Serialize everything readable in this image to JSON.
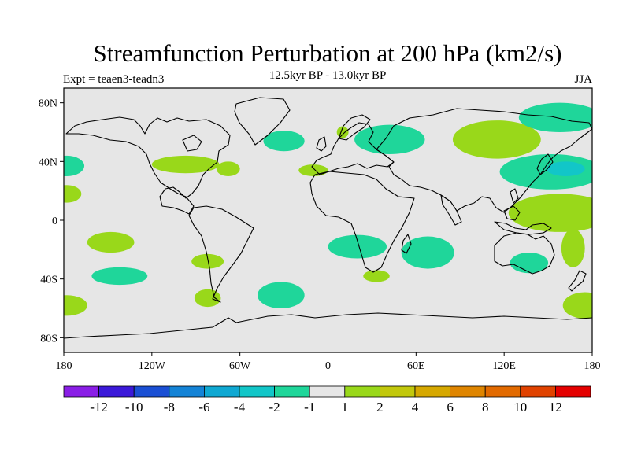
{
  "title": "Streamfunction Perturbation at 200 hPa (km2/s)",
  "subtitle": "12.5kyr BP - 13.0kyr BP",
  "left_label": "Expt = teaen3-teadn3",
  "right_label": "JJA",
  "map": {
    "projection": "cylindrical-equidistant",
    "lon_range": [
      -180,
      180
    ],
    "lat_range": [
      -90,
      90
    ],
    "background_color": "#e6e6e6",
    "lon_ticks": [
      {
        "value": -180,
        "label": "180"
      },
      {
        "value": -120,
        "label": "120W"
      },
      {
        "value": -60,
        "label": "60W"
      },
      {
        "value": 0,
        "label": "0"
      },
      {
        "value": 60,
        "label": "60E"
      },
      {
        "value": 120,
        "label": "120E"
      },
      {
        "value": 180,
        "label": "180"
      }
    ],
    "lat_ticks": [
      {
        "value": 80,
        "label": "80N"
      },
      {
        "value": 40,
        "label": "40N"
      },
      {
        "value": 0,
        "label": "0"
      },
      {
        "value": -40,
        "label": "40S"
      },
      {
        "value": -80,
        "label": "80S"
      }
    ]
  },
  "colorbar": {
    "colors": [
      "#8a1ee6",
      "#3b19d9",
      "#1a4fd4",
      "#1483d6",
      "#0fa8d2",
      "#12c6c8",
      "#1fd69a",
      "#e6e6e6",
      "#99d81a",
      "#c2c80c",
      "#d6a800",
      "#df8500",
      "#e26a00",
      "#e04200",
      "#e40000"
    ],
    "labels": [
      "-12",
      "-10",
      "-8",
      "-6",
      "-4",
      "-2",
      "-1",
      "1",
      "2",
      "4",
      "6",
      "8",
      "10",
      "12"
    ]
  },
  "chart_data": {
    "type": "filled-contour-map",
    "variable": "Streamfunction Perturbation at 200 hPa",
    "units": "km2/s",
    "season": "JJA",
    "period": "12.5kyr BP - 13.0kyr BP",
    "experiment": "teaen3-teadn3",
    "levels": [
      -12,
      -10,
      -8,
      -6,
      -4,
      -2,
      -1,
      1,
      2,
      4,
      6,
      8,
      10,
      12
    ],
    "anomaly_regions": [
      {
        "lon": -148,
        "lat": -15,
        "rx": 16,
        "ry": 7,
        "value": 1.5
      },
      {
        "lon": -142,
        "lat": -38,
        "rx": 19,
        "ry": 6,
        "value": -1.5
      },
      {
        "lon": -178,
        "lat": -58,
        "rx": 14,
        "ry": 7,
        "value": 1.5
      },
      {
        "lon": -178,
        "lat": 37,
        "rx": 12,
        "ry": 7,
        "value": -1.5
      },
      {
        "lon": -178,
        "lat": 18,
        "rx": 10,
        "ry": 6,
        "value": 1.5
      },
      {
        "lon": -97,
        "lat": 38,
        "rx": 23,
        "ry": 6,
        "value": 1.5
      },
      {
        "lon": -68,
        "lat": 35,
        "rx": 8,
        "ry": 5,
        "value": 1.5
      },
      {
        "lon": -82,
        "lat": -28,
        "rx": 11,
        "ry": 5,
        "value": 1.5
      },
      {
        "lon": -82,
        "lat": -53,
        "rx": 9,
        "ry": 6,
        "value": 1.5
      },
      {
        "lon": -30,
        "lat": 54,
        "rx": 14,
        "ry": 7,
        "value": -1.5
      },
      {
        "lon": -32,
        "lat": -51,
        "rx": 16,
        "ry": 9,
        "value": -1.5
      },
      {
        "lon": -10,
        "lat": 34,
        "rx": 10,
        "ry": 4,
        "value": 1.5
      },
      {
        "lon": 10,
        "lat": 60,
        "rx": 4,
        "ry": 4,
        "value": 1.5
      },
      {
        "lon": 42,
        "lat": 55,
        "rx": 24,
        "ry": 10,
        "value": -1.5
      },
      {
        "lon": 20,
        "lat": -18,
        "rx": 20,
        "ry": 8,
        "value": -1.5
      },
      {
        "lon": 33,
        "lat": -38,
        "rx": 9,
        "ry": 4,
        "value": 1.5
      },
      {
        "lon": 68,
        "lat": -22,
        "rx": 18,
        "ry": 11,
        "value": -1.5
      },
      {
        "lon": 115,
        "lat": 55,
        "rx": 30,
        "ry": 13,
        "value": 1.5
      },
      {
        "lon": 158,
        "lat": 70,
        "rx": 28,
        "ry": 10,
        "value": -1.5
      },
      {
        "lon": 152,
        "lat": 33,
        "rx": 35,
        "ry": 12,
        "value": -1.5
      },
      {
        "lon": 162,
        "lat": 35,
        "rx": 13,
        "ry": 5,
        "value": -2.5
      },
      {
        "lon": 158,
        "lat": 5,
        "rx": 35,
        "ry": 13,
        "value": 1.5
      },
      {
        "lon": 167,
        "lat": -19,
        "rx": 8,
        "ry": 13,
        "value": 1.5
      },
      {
        "lon": 137,
        "lat": -29,
        "rx": 13,
        "ry": 7,
        "value": -1.5
      },
      {
        "lon": 175,
        "lat": -58,
        "rx": 15,
        "ry": 9,
        "value": 1.5
      }
    ]
  }
}
